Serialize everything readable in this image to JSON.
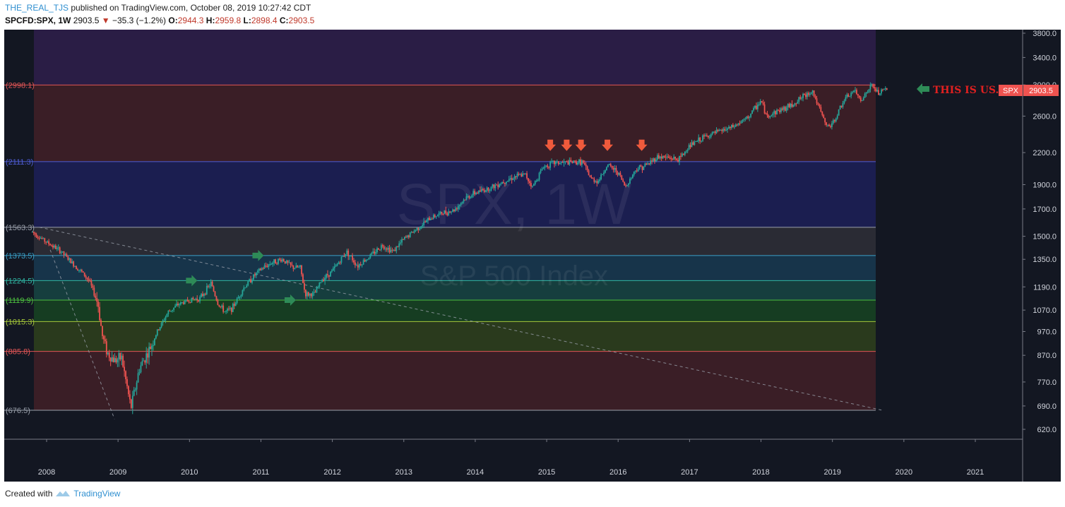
{
  "header": {
    "author": "THE_REAL_TJS",
    "published_text": "published on TradingView.com, October 08, 2019 10:27:42 CDT"
  },
  "ticker": {
    "symbol": "SPCFD:SPX, 1W",
    "last": "2903.5",
    "change": "−35.3 (−1.2%)",
    "open_label": "O:",
    "open": "2944.3",
    "high_label": "H:",
    "high": "2959.8",
    "low_label": "L:",
    "low": "2898.4",
    "close_label": "C:",
    "close": "2903.5"
  },
  "watermark": {
    "main": "SPX, 1W",
    "sub": "S&P 500 Index"
  },
  "annotation": {
    "text": "THIS IS US."
  },
  "price_badge": {
    "symbol": "SPX",
    "value": "2903.5"
  },
  "footer": {
    "created_with": "Created with",
    "brand": "TradingView"
  },
  "colors": {
    "background": "#131722",
    "up": "#26a69a",
    "down": "#ef5350",
    "annotation": "#e02020",
    "arrow_green": "#2e8b57",
    "arrow_red": "#ef5a3c"
  },
  "chart_data": {
    "type": "candlestick",
    "timeframe": "1W",
    "x_axis_years": [
      "2008",
      "2009",
      "2010",
      "2011",
      "2012",
      "2013",
      "2014",
      "2015",
      "2016",
      "2017",
      "2018",
      "2019",
      "2020",
      "2021"
    ],
    "y_axis_ticks": [
      "3800.0",
      "3400.0",
      "3000.0",
      "2600.0",
      "2200.0",
      "1900.0",
      "1700.0",
      "1500.0",
      "1350.0",
      "1190.0",
      "1070.0",
      "970.0",
      "870.0",
      "770.0",
      "690.0",
      "620.0"
    ],
    "y_scale": "log",
    "fib_levels": [
      {
        "label": "2998.1",
        "value": 2998.1,
        "color": "#e05555"
      },
      {
        "label": "2111.3",
        "value": 2111.3,
        "color": "#4f5dd6"
      },
      {
        "label": "1563.3",
        "value": 1563.3,
        "color": "#9aa0ab"
      },
      {
        "label": "1373.5",
        "value": 1373.5,
        "color": "#3aa0c8"
      },
      {
        "label": "1224.5",
        "value": 1224.5,
        "color": "#2fb5a2"
      },
      {
        "label": "1119.9",
        "value": 1119.9,
        "color": "#4cbf3f"
      },
      {
        "label": "1015.3",
        "value": 1015.3,
        "color": "#a6c93a"
      },
      {
        "label": "885.8",
        "value": 885.8,
        "color": "#e05555"
      },
      {
        "label": "676.5",
        "value": 676.5,
        "color": "#9aa0ab"
      }
    ],
    "price_path": [
      [
        2007.8,
        1530
      ],
      [
        2008.0,
        1460
      ],
      [
        2008.2,
        1400
      ],
      [
        2008.35,
        1330
      ],
      [
        2008.5,
        1270
      ],
      [
        2008.6,
        1220
      ],
      [
        2008.72,
        1100
      ],
      [
        2008.78,
        950
      ],
      [
        2008.85,
        880
      ],
      [
        2008.95,
        850
      ],
      [
        2009.05,
        860
      ],
      [
        2009.12,
        760
      ],
      [
        2009.18,
        683
      ],
      [
        2009.3,
        820
      ],
      [
        2009.45,
        900
      ],
      [
        2009.55,
        970
      ],
      [
        2009.7,
        1060
      ],
      [
        2009.85,
        1100
      ],
      [
        2010.0,
        1120
      ],
      [
        2010.15,
        1130
      ],
      [
        2010.3,
        1210
      ],
      [
        2010.4,
        1100
      ],
      [
        2010.5,
        1060
      ],
      [
        2010.6,
        1080
      ],
      [
        2010.75,
        1180
      ],
      [
        2010.9,
        1250
      ],
      [
        2011.0,
        1290
      ],
      [
        2011.15,
        1330
      ],
      [
        2011.3,
        1350
      ],
      [
        2011.45,
        1300
      ],
      [
        2011.55,
        1300
      ],
      [
        2011.62,
        1150
      ],
      [
        2011.75,
        1150
      ],
      [
        2011.85,
        1230
      ],
      [
        2012.0,
        1280
      ],
      [
        2012.2,
        1400
      ],
      [
        2012.35,
        1310
      ],
      [
        2012.5,
        1360
      ],
      [
        2012.7,
        1440
      ],
      [
        2012.85,
        1400
      ],
      [
        2013.0,
        1480
      ],
      [
        2013.2,
        1560
      ],
      [
        2013.4,
        1640
      ],
      [
        2013.55,
        1670
      ],
      [
        2013.7,
        1690
      ],
      [
        2013.85,
        1780
      ],
      [
        2014.0,
        1830
      ],
      [
        2014.2,
        1870
      ],
      [
        2014.4,
        1930
      ],
      [
        2014.55,
        1970
      ],
      [
        2014.7,
        1990
      ],
      [
        2014.8,
        1880
      ],
      [
        2014.95,
        2060
      ],
      [
        2015.1,
        2100
      ],
      [
        2015.3,
        2100
      ],
      [
        2015.5,
        2110
      ],
      [
        2015.62,
        1950
      ],
      [
        2015.72,
        1930
      ],
      [
        2015.85,
        2080
      ],
      [
        2016.0,
        2010
      ],
      [
        2016.1,
        1880
      ],
      [
        2016.25,
        2040
      ],
      [
        2016.4,
        2080
      ],
      [
        2016.55,
        2160
      ],
      [
        2016.7,
        2150
      ],
      [
        2016.85,
        2130
      ],
      [
        2017.0,
        2270
      ],
      [
        2017.2,
        2360
      ],
      [
        2017.4,
        2420
      ],
      [
        2017.6,
        2470
      ],
      [
        2017.8,
        2570
      ],
      [
        2018.0,
        2790
      ],
      [
        2018.08,
        2590
      ],
      [
        2018.2,
        2650
      ],
      [
        2018.4,
        2720
      ],
      [
        2018.6,
        2850
      ],
      [
        2018.72,
        2920
      ],
      [
        2018.82,
        2680
      ],
      [
        2018.92,
        2480
      ],
      [
        2019.0,
        2500
      ],
      [
        2019.15,
        2780
      ],
      [
        2019.3,
        2920
      ],
      [
        2019.4,
        2800
      ],
      [
        2019.55,
        2990
      ],
      [
        2019.65,
        2880
      ],
      [
        2019.75,
        2950
      ],
      [
        2019.77,
        2903.5
      ]
    ],
    "arrows": [
      {
        "type": "green-right",
        "x": 2010.05,
        "value": 1224.5
      },
      {
        "type": "green-right",
        "x": 2010.98,
        "value": 1373.5
      },
      {
        "type": "green-right",
        "x": 2011.43,
        "value": 1119.9
      },
      {
        "type": "red-down",
        "x": 2015.05,
        "value": 2260
      },
      {
        "type": "red-down",
        "x": 2015.28,
        "value": 2260
      },
      {
        "type": "red-down",
        "x": 2015.48,
        "value": 2260
      },
      {
        "type": "red-down",
        "x": 2015.85,
        "value": 2260
      },
      {
        "type": "red-down",
        "x": 2016.33,
        "value": 2260
      }
    ],
    "trendlines": [
      {
        "from": [
          2007.9,
          1563.3
        ],
        "to": [
          2019.7,
          676.5
        ],
        "style": "dashed"
      },
      {
        "from": [
          2008.05,
          1410
        ],
        "to": [
          2008.95,
          650
        ],
        "style": "dashed"
      }
    ]
  }
}
